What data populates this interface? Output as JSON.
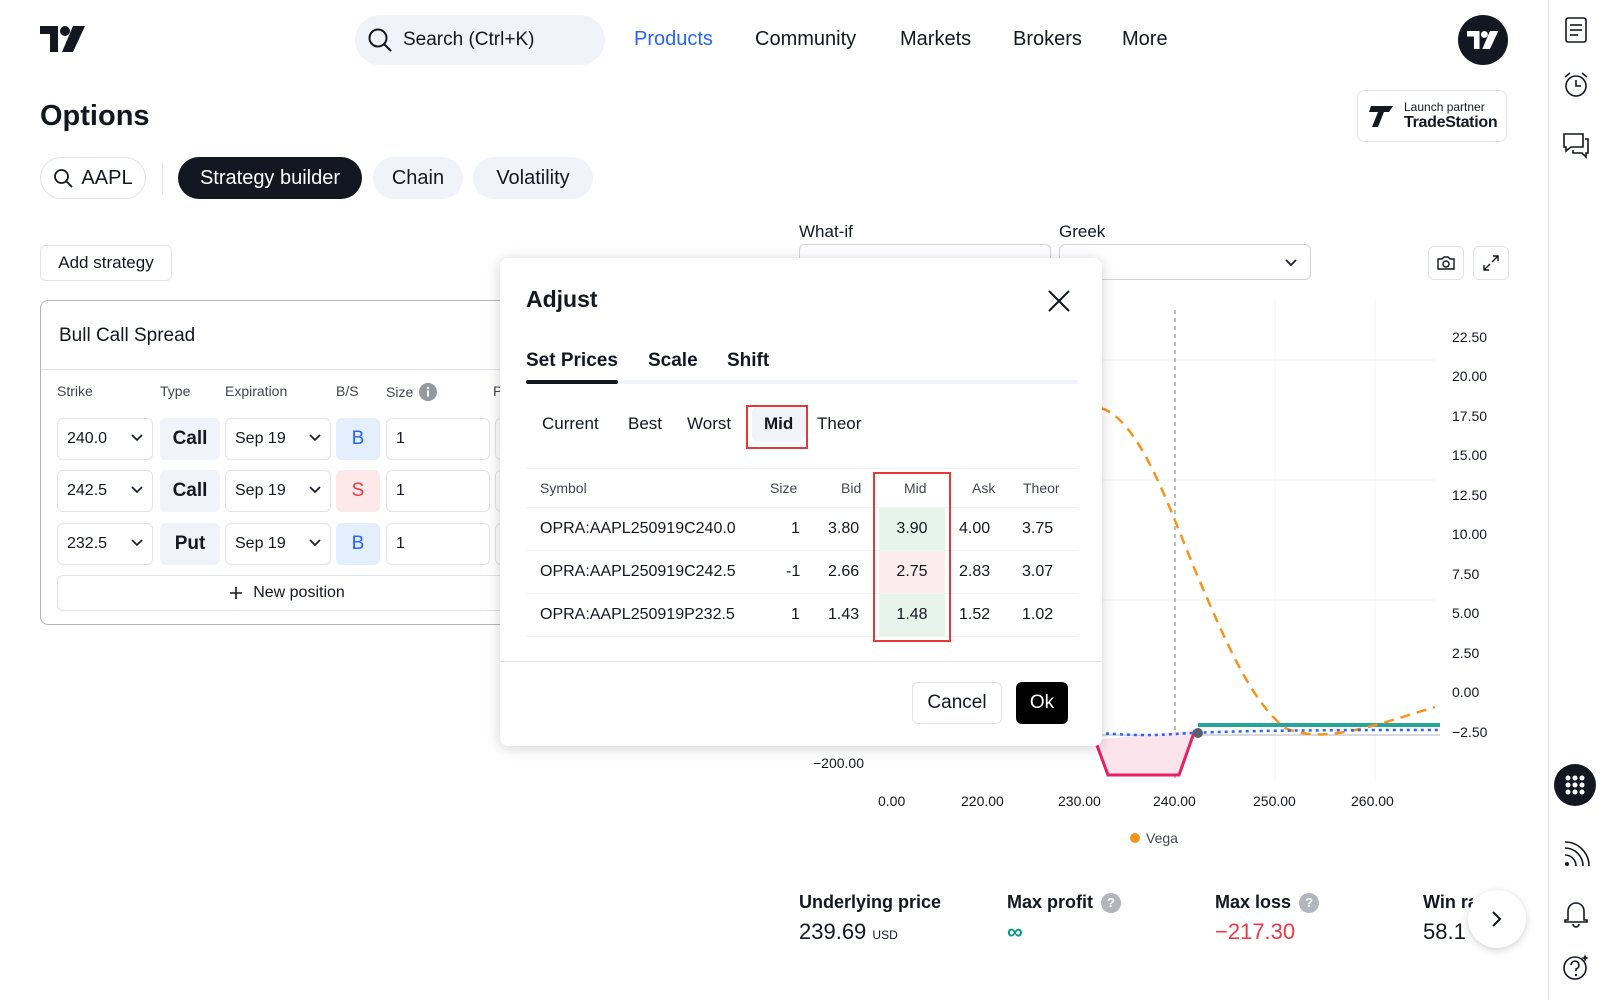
{
  "header": {
    "search_placeholder": "Search (Ctrl+K)",
    "nav": [
      "Products",
      "Community",
      "Markets",
      "Brokers",
      "More"
    ],
    "active_nav": "Products"
  },
  "page": {
    "title": "Options",
    "partner_label": "Launch partner",
    "partner_name": "TradeStation"
  },
  "toolbar": {
    "symbol": "AAPL",
    "tabs": [
      "Strategy builder",
      "Chain",
      "Volatility"
    ],
    "active_tab": "Strategy builder",
    "add_strategy": "Add strategy"
  },
  "strategy": {
    "name": "Bull Call Spread",
    "columns": [
      "Strike",
      "Type",
      "Expiration",
      "B/S",
      "Size",
      "P"
    ],
    "legs": [
      {
        "strike": "240.0",
        "type": "Call",
        "expiration": "Sep 19",
        "side": "B",
        "size": "1"
      },
      {
        "strike": "242.5",
        "type": "Call",
        "expiration": "Sep 19",
        "side": "S",
        "size": "1"
      },
      {
        "strike": "232.5",
        "type": "Put",
        "expiration": "Sep 19",
        "side": "B",
        "size": "1"
      }
    ],
    "new_position": "New position"
  },
  "chart_controls": {
    "whatif_label": "What-if",
    "greek_label": "Greek",
    "whatif_value": "",
    "greek_value": ""
  },
  "chart_data": {
    "type": "line",
    "right_ticks": [
      "22.50",
      "20.00",
      "17.50",
      "15.00",
      "12.50",
      "10.00",
      "7.50",
      "5.00",
      "2.50",
      "0.00",
      "−2.50"
    ],
    "left_ticks": [
      "−200.00"
    ],
    "x_ticks": [
      "0.00",
      "220.00",
      "230.00",
      "240.00",
      "250.00",
      "260.00"
    ],
    "series": [
      {
        "name": "Vega",
        "color": "#f7931a"
      }
    ]
  },
  "metrics": {
    "underlying_label": "Underlying price",
    "underlying_value": "239.69",
    "underlying_unit": "USD",
    "max_profit_label": "Max profit",
    "max_profit_value": "∞",
    "max_loss_label": "Max loss",
    "max_loss_value": "−217.30",
    "win_rate_label": "Win ra",
    "win_rate_value": "58.1"
  },
  "modal": {
    "title": "Adjust",
    "tabs": [
      "Set Prices",
      "Scale",
      "Shift"
    ],
    "price_modes": [
      "Current",
      "Best",
      "Worst",
      "Mid",
      "Theor"
    ],
    "active_mode": "Mid",
    "columns": [
      "Symbol",
      "Size",
      "Bid",
      "Mid",
      "Ask",
      "Theor"
    ],
    "rows": [
      {
        "symbol": "OPRA:AAPL250919C240.0",
        "size": "1",
        "bid": "3.80",
        "mid": "3.90",
        "ask": "4.00",
        "theor": "3.75"
      },
      {
        "symbol": "OPRA:AAPL250919C242.5",
        "size": "-1",
        "bid": "2.66",
        "mid": "2.75",
        "ask": "2.83",
        "theor": "3.07"
      },
      {
        "symbol": "OPRA:AAPL250919P232.5",
        "size": "1",
        "bid": "1.43",
        "mid": "1.48",
        "ask": "1.52",
        "theor": "1.02"
      }
    ],
    "cancel": "Cancel",
    "ok": "Ok"
  }
}
